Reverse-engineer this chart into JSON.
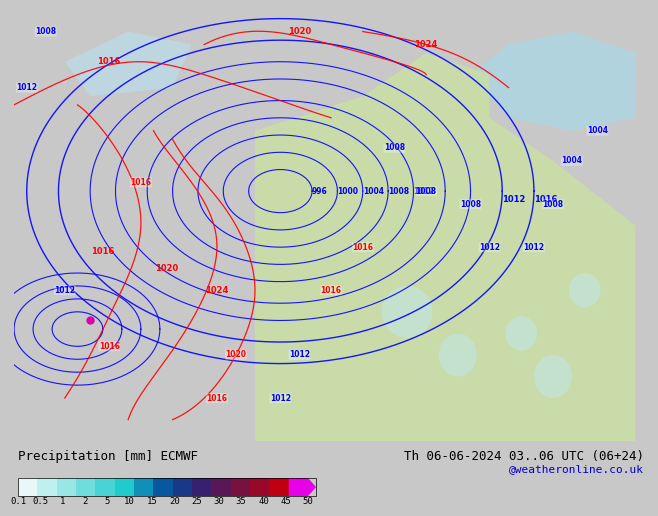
{
  "title_left": "Precipitation [mm] ECMWF",
  "title_right": "Th 06-06-2024 03..06 UTC (06+24)",
  "watermark": "@weatheronline.co.uk",
  "colorbar_labels": [
    "0.1",
    "0.5",
    "1",
    "2",
    "5",
    "10",
    "15",
    "20",
    "25",
    "30",
    "35",
    "40",
    "45",
    "50"
  ],
  "colorbar_colors": [
    "#e0f8f8",
    "#c8f0f0",
    "#a8e8e8",
    "#88e0e0",
    "#68d8d8",
    "#48d0d0",
    "#28c8c8",
    "#1890c0",
    "#0858a8",
    "#282890",
    "#482078",
    "#781860",
    "#a81048",
    "#d80830",
    "#ff00ff"
  ],
  "bg_color": "#d8d8d8",
  "map_bg": "#f0f0e8",
  "font_family": "monospace"
}
